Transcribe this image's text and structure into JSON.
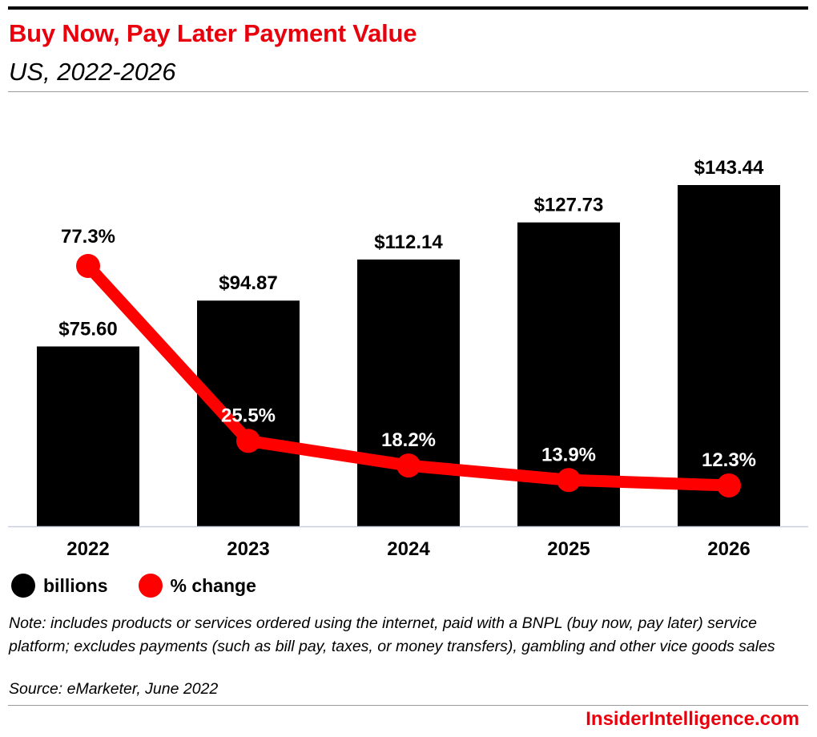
{
  "header": {
    "title": "Buy Now, Pay Later Payment Value",
    "subtitle": "US, 2022-2026"
  },
  "chart_data": {
    "type": "bar",
    "categories": [
      "2022",
      "2023",
      "2024",
      "2025",
      "2026"
    ],
    "series": [
      {
        "name": "billions",
        "type": "bar",
        "color": "#000000",
        "values": [
          75.6,
          94.87,
          112.14,
          127.73,
          143.44
        ],
        "labels": [
          "$75.60",
          "$94.87",
          "$112.14",
          "$127.73",
          "$143.44"
        ]
      },
      {
        "name": "% change",
        "type": "line",
        "color": "#ff0000",
        "values": [
          77.3,
          25.5,
          18.2,
          13.9,
          12.3
        ],
        "labels": [
          "77.3%",
          "25.5%",
          "18.2%",
          "13.9%",
          "12.3%"
        ]
      }
    ],
    "legend_position": "bottom-left",
    "grid": false
  },
  "legend": [
    {
      "label": "billions",
      "color": "#000000"
    },
    {
      "label": "% change",
      "color": "#ff0000"
    }
  ],
  "footer": {
    "note": "Note: includes products or services ordered using the internet, paid with a BNPL (buy now, pay later) service platform; excludes payments (such as bill pay, taxes, or money transfers), gambling and other vice goods sales",
    "source": "Source: eMarketer, June 2022",
    "brand": "InsiderIntelligence.com"
  },
  "colors": {
    "accent": "#e8000d",
    "bar": "#000000",
    "line": "#ff0000"
  }
}
